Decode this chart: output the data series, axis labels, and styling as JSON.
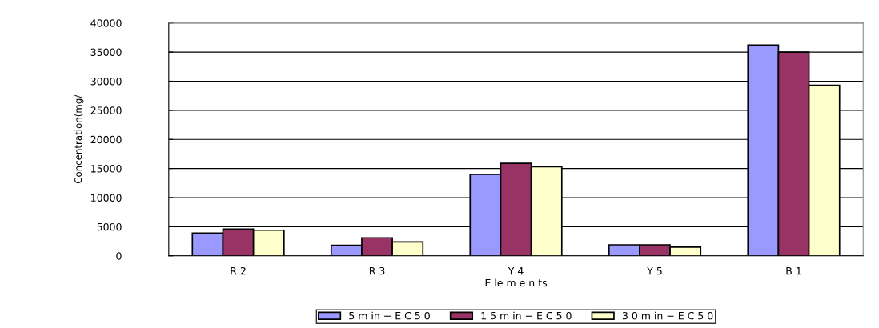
{
  "chart_data": {
    "type": "bar",
    "xlabel": "E le m e n ts",
    "ylabel": "Concentration(mg/",
    "categories": [
      "R 2",
      "R 3",
      "Y 4",
      "Y 5",
      "B 1"
    ],
    "series": [
      {
        "name": "5 m in − E C 5 0",
        "color": "#9999ff",
        "values": [
          3900,
          1800,
          14000,
          1900,
          36200
        ]
      },
      {
        "name": "1 5 m in − E C 5 0",
        "color": "#993366",
        "values": [
          4600,
          3100,
          15900,
          1900,
          35000
        ]
      },
      {
        "name": "3 0 m in − E C 5 0",
        "color": "#ffffcc",
        "values": [
          4400,
          2400,
          15300,
          1500,
          29300
        ]
      }
    ],
    "ylim": [
      0,
      40000
    ],
    "yticks": [
      0,
      5000,
      10000,
      15000,
      20000,
      25000,
      30000,
      35000,
      40000
    ],
    "grid": "y",
    "legend": "bottom"
  }
}
